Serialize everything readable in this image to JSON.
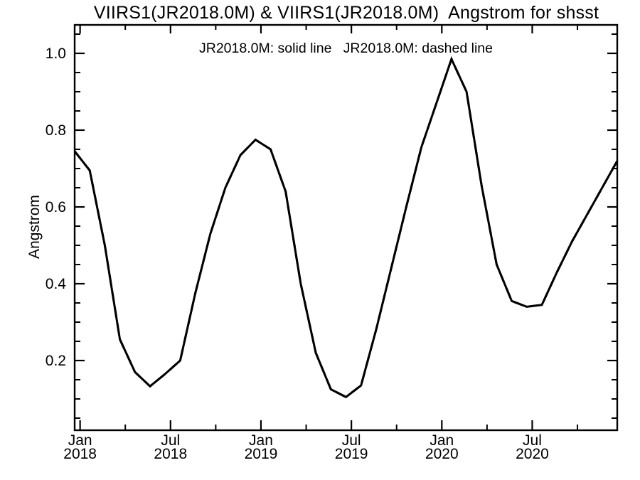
{
  "title": "VIIRS1(JR2018.0M) & VIIRS1(JR2018.0M)  Angstrom for shsst",
  "annotation": "JR2018.0M: solid line   JR2018.0M: dashed line",
  "colors": {
    "foreground": "#000000",
    "background": "#ffffff"
  },
  "y_axis": {
    "label": "Angstrom",
    "major_ticks": [
      {
        "value": 0.2,
        "label": "0.2"
      },
      {
        "value": 0.4,
        "label": "0.4"
      },
      {
        "value": 0.6,
        "label": "0.6"
      },
      {
        "value": 0.8,
        "label": "0.8"
      },
      {
        "value": 1.0,
        "label": "1.0"
      }
    ],
    "minor_interval": 0.05,
    "range": [
      0.02,
      1.07
    ]
  },
  "x_axis": {
    "months_spanned": 36,
    "major_ticks": [
      {
        "offset": 0.36,
        "month": "Jan",
        "year": "2018"
      },
      {
        "offset": 6.36,
        "month": "Jul",
        "year": "2018"
      },
      {
        "offset": 12.36,
        "month": "Jan",
        "year": "2019"
      },
      {
        "offset": 18.36,
        "month": "Jul",
        "year": "2019"
      },
      {
        "offset": 24.36,
        "month": "Jan",
        "year": "2020"
      },
      {
        "offset": 30.36,
        "month": "Jul",
        "year": "2020"
      }
    ],
    "minor_tick_offsets": [
      3.36,
      9.36,
      15.36,
      21.36,
      27.36,
      33.36
    ]
  },
  "chart_data": {
    "type": "line",
    "title": "VIIRS1(JR2018.0M) & VIIRS1(JR2018.0M)  Angstrom for shsst",
    "xlabel": "",
    "ylabel": "Angstrom",
    "ylim": [
      0.02,
      1.07
    ],
    "xlim": [
      "2017-12",
      "2020-12"
    ],
    "grid": false,
    "legend_position": "inside-top-center",
    "x": [
      "2017-12",
      "2018-01",
      "2018-02",
      "2018-03",
      "2018-04",
      "2018-05",
      "2018-06",
      "2018-07",
      "2018-08",
      "2018-09",
      "2018-10",
      "2018-11",
      "2018-12",
      "2019-01",
      "2019-02",
      "2019-03",
      "2019-04",
      "2019-05",
      "2019-06",
      "2019-07",
      "2019-08",
      "2019-09",
      "2019-10",
      "2019-11",
      "2019-12",
      "2020-01",
      "2020-02",
      "2020-03",
      "2020-04",
      "2020-05",
      "2020-06",
      "2020-07",
      "2020-08",
      "2020-09",
      "2020-10",
      "2020-11",
      "2020-12"
    ],
    "series": [
      {
        "name": "JR2018.0M",
        "style": "solid",
        "values": [
          0.745,
          0.695,
          0.5,
          0.255,
          0.17,
          0.133,
          0.165,
          0.2,
          0.375,
          0.53,
          0.65,
          0.735,
          0.775,
          0.75,
          0.64,
          0.4,
          0.22,
          0.125,
          0.105,
          0.135,
          0.28,
          0.44,
          0.6,
          0.755,
          0.87,
          0.985,
          0.9,
          0.655,
          0.45,
          0.355,
          0.34,
          0.345,
          0.43,
          0.51,
          0.58,
          0.65,
          0.72
        ]
      },
      {
        "name": "JR2018.0M",
        "style": "dashed",
        "note": "coincident with solid line (not separately visible)",
        "values": [
          0.745,
          0.695,
          0.5,
          0.255,
          0.17,
          0.133,
          0.165,
          0.2,
          0.375,
          0.53,
          0.65,
          0.735,
          0.775,
          0.75,
          0.64,
          0.4,
          0.22,
          0.125,
          0.105,
          0.135,
          0.28,
          0.44,
          0.6,
          0.755,
          0.87,
          0.985,
          0.9,
          0.655,
          0.45,
          0.355,
          0.34,
          0.345,
          0.43,
          0.51,
          0.58,
          0.65,
          0.72
        ]
      }
    ]
  }
}
